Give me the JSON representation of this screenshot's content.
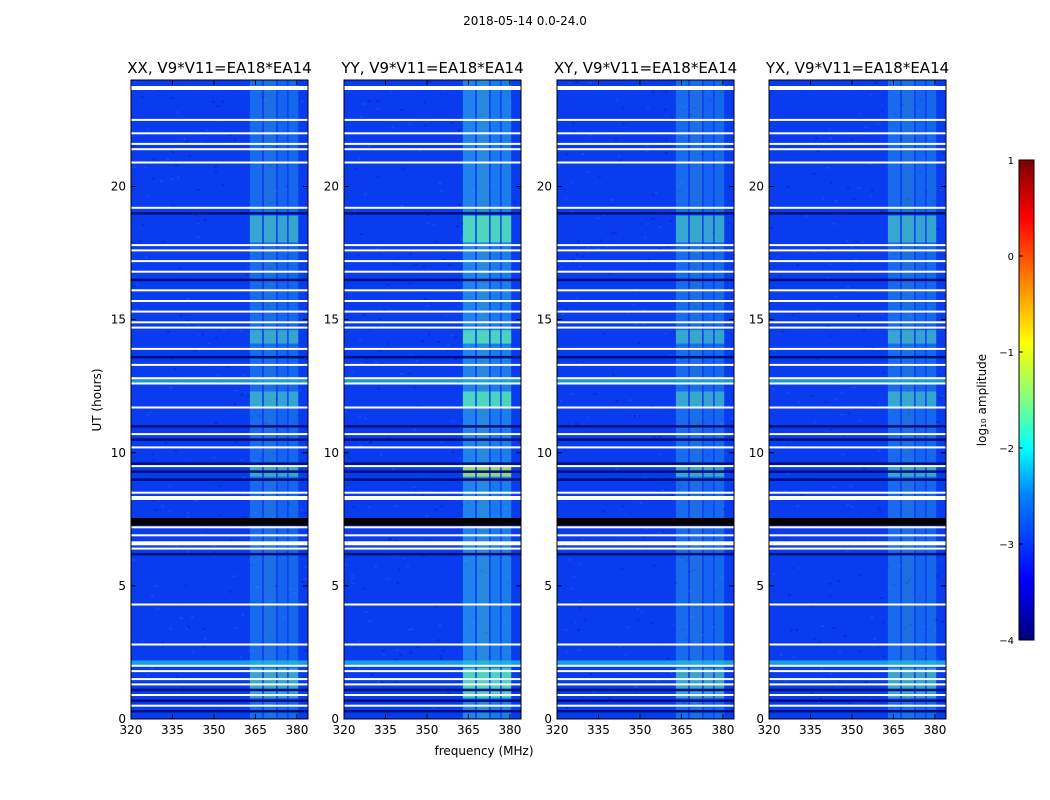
{
  "figure": {
    "suptitle": "2018-05-14 0.0-24.0",
    "xlabel": "frequency (MHz)",
    "ylabel": "UT (hours)"
  },
  "colorbar": {
    "label": "log₁₀ amplitude",
    "range": [
      -4,
      1
    ],
    "ticks": [
      "1",
      "0",
      "−1",
      "−2",
      "−3",
      "−4"
    ],
    "colormap": [
      "#00007f",
      "#0000ff",
      "#0080ff",
      "#00ffff",
      "#80ff80",
      "#ffff00",
      "#ff8000",
      "#ff0000",
      "#7f0000"
    ]
  },
  "chart_data": {
    "type": "heatmap",
    "title": "2018-05-14 0.0-24.0",
    "xlabel": "frequency (MHz)",
    "ylabel": "UT (hours)",
    "xlim": [
      320,
      384
    ],
    "ylim": [
      0,
      24
    ],
    "xticks": [
      "320",
      "335",
      "350",
      "365",
      "380"
    ],
    "yticks": [
      "0",
      "5",
      "10",
      "15",
      "20"
    ],
    "value_range_log10": [
      -4,
      1
    ],
    "panels": [
      {
        "title": "XX, V9*V11=EA18*EA14",
        "polarization": "XX"
      },
      {
        "title": "YY, V9*V11=EA18*EA14",
        "polarization": "YY"
      },
      {
        "title": "XY, V9*V11=EA18*EA14",
        "polarization": "XY"
      },
      {
        "title": "YX, V9*V11=EA18*EA14",
        "polarization": "YX"
      }
    ],
    "rfi_bands_mhz": [
      [
        363,
        368
      ],
      [
        368,
        373
      ],
      [
        373,
        377
      ],
      [
        377,
        381
      ]
    ],
    "gaps_ut_hours": [
      0.5,
      0.9,
      1.3,
      1.5,
      1.8,
      2.0,
      2.8,
      4.3,
      6.4,
      6.6,
      6.9,
      7.2,
      8.3,
      8.5,
      9.5,
      10.2,
      10.7,
      11.7,
      12.6,
      12.8,
      13.3,
      13.9,
      14.7,
      14.9,
      15.3,
      15.7,
      16.1,
      16.8,
      17.2,
      17.6,
      17.8,
      19.2,
      20.9,
      21.4,
      21.6,
      22.0,
      22.5,
      23.7
    ],
    "dark_ut_hours": [
      0.3,
      0.7,
      1.1,
      6.2,
      7.3,
      7.4,
      9.0,
      9.3,
      9.6,
      10.5,
      11.0,
      13.6,
      16.5,
      19.0
    ]
  }
}
